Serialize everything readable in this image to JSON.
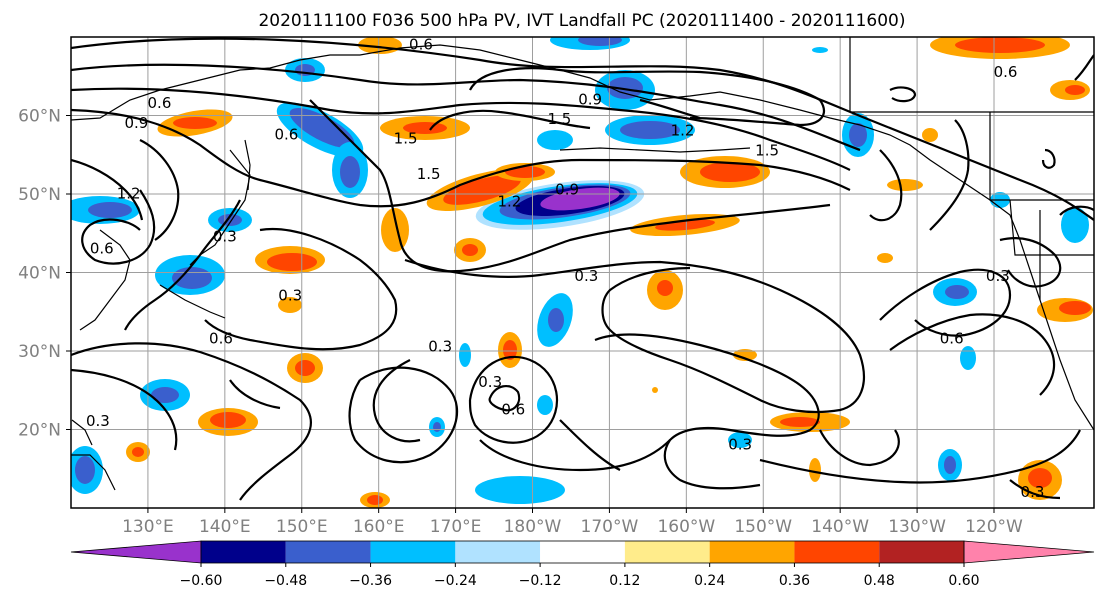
{
  "chart_data": {
    "type": "map-contour",
    "title": "2020111100 F036 500 hPa PV, IVT Landfall PC (2020111400 - 2020111600)",
    "lon_range": [
      120,
      253
    ],
    "lat_range": [
      10,
      70
    ],
    "x_ticks": [
      {
        "lon": 130,
        "label": "130°E"
      },
      {
        "lon": 140,
        "label": "140°E"
      },
      {
        "lon": 150,
        "label": "150°E"
      },
      {
        "lon": 160,
        "label": "160°E"
      },
      {
        "lon": 170,
        "label": "170°E"
      },
      {
        "lon": 180,
        "label": "180°W"
      },
      {
        "lon": 190,
        "label": "170°W"
      },
      {
        "lon": 200,
        "label": "160°W"
      },
      {
        "lon": 210,
        "label": "150°W"
      },
      {
        "lon": 220,
        "label": "140°W"
      },
      {
        "lon": 230,
        "label": "130°W"
      },
      {
        "lon": 240,
        "label": "120°W"
      }
    ],
    "y_ticks": [
      {
        "lat": 20,
        "label": "20°N"
      },
      {
        "lat": 30,
        "label": "30°N"
      },
      {
        "lat": 40,
        "label": "40°N"
      },
      {
        "lat": 50,
        "label": "50°N"
      },
      {
        "lat": 60,
        "label": "60°N"
      }
    ],
    "grid": true,
    "colorbar": {
      "levels": [
        "−0.60",
        "−0.48",
        "−0.36",
        "−0.24",
        "−0.12",
        "0.12",
        "0.24",
        "0.36",
        "0.48",
        "0.60"
      ],
      "colors": [
        "#9932CC",
        "#00008B",
        "#3A5FCD",
        "#00BFFF",
        "#B0E2FF",
        "#FFFFFF",
        "#FFEC8B",
        "#FFA500",
        "#FF4500",
        "#B22222",
        "#FF82AB"
      ],
      "extend": "both"
    },
    "contour_labels": [
      {
        "text": "0.6",
        "lon": 165.5,
        "lat": 69.0
      },
      {
        "text": "0.9",
        "lon": 187.5,
        "lat": 62.0
      },
      {
        "text": "1.5",
        "lon": 183.5,
        "lat": 59.5
      },
      {
        "text": "1.2",
        "lon": 199.5,
        "lat": 58.0
      },
      {
        "text": "1.5",
        "lon": 210.5,
        "lat": 55.5
      },
      {
        "text": "0.6",
        "lon": 131.5,
        "lat": 61.5
      },
      {
        "text": "0.9",
        "lon": 128.5,
        "lat": 59.0
      },
      {
        "text": "0.6",
        "lon": 148.0,
        "lat": 57.5
      },
      {
        "text": "1.5",
        "lon": 163.5,
        "lat": 57.0
      },
      {
        "text": "1.5",
        "lon": 166.5,
        "lat": 52.5
      },
      {
        "text": "0.9",
        "lon": 184.5,
        "lat": 50.5
      },
      {
        "text": "1.2",
        "lon": 177.0,
        "lat": 49.0
      },
      {
        "text": "1.2",
        "lon": 127.5,
        "lat": 50.0
      },
      {
        "text": "0.6",
        "lon": 124.0,
        "lat": 43.0
      },
      {
        "text": "0.3",
        "lon": 140.0,
        "lat": 44.5
      },
      {
        "text": "0.3",
        "lon": 148.5,
        "lat": 37.0
      },
      {
        "text": "0.6",
        "lon": 139.5,
        "lat": 31.5
      },
      {
        "text": "0.3",
        "lon": 187.0,
        "lat": 39.5
      },
      {
        "text": "0.3",
        "lon": 168.0,
        "lat": 30.5
      },
      {
        "text": "0.3",
        "lon": 174.5,
        "lat": 26.0
      },
      {
        "text": "0.6",
        "lon": 177.5,
        "lat": 22.5
      },
      {
        "text": "0.3",
        "lon": 207.0,
        "lat": 18.0
      },
      {
        "text": "0.6",
        "lon": 234.5,
        "lat": 31.5
      },
      {
        "text": "0.3",
        "lon": 240.5,
        "lat": 39.5
      },
      {
        "text": "0.3",
        "lon": 123.5,
        "lat": 21.0
      },
      {
        "text": "0.3",
        "lon": 245.0,
        "lat": 12.0
      },
      {
        "text": "0.6",
        "lon": 241.5,
        "lat": 65.5
      }
    ]
  }
}
